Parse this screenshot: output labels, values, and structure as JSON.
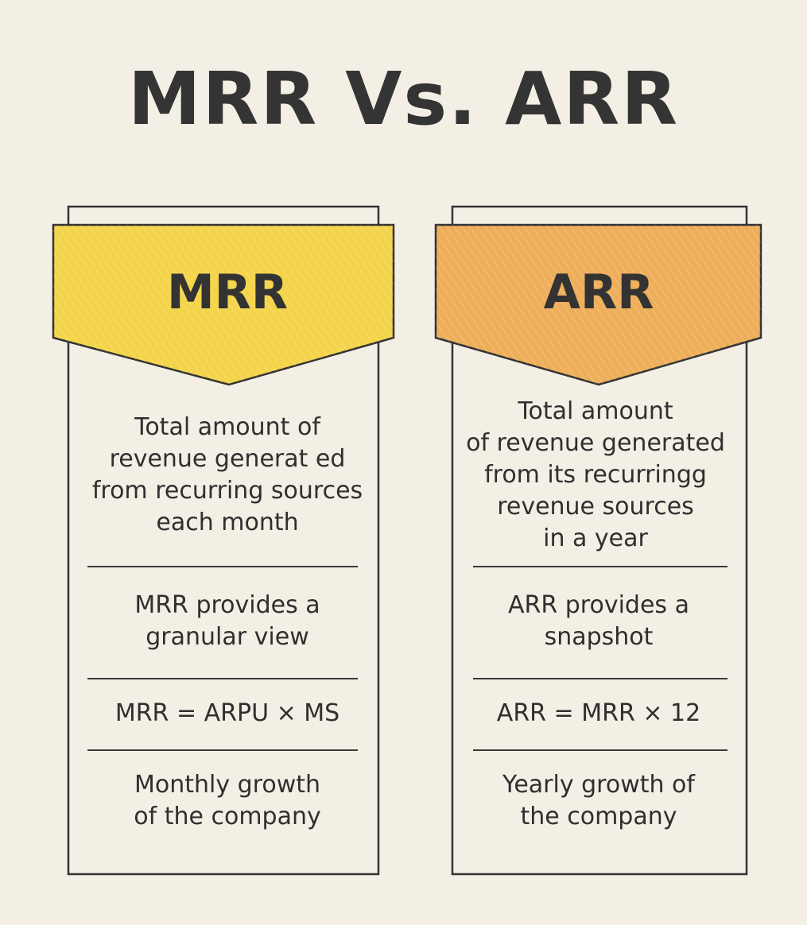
{
  "title": "MRR Vs. ARR",
  "colors": {
    "background": "#f3efe4",
    "mrr_banner": "#f4d44a",
    "arr_banner": "#eeae5a",
    "ink": "#333333"
  },
  "columns": [
    {
      "heading": "MRR",
      "rows": [
        "Total amount of\nrevenue generat ed\nfrom recurring sources\neach month",
        "MRR provides a\ngranular view",
        "MRR = ARPU × MS",
        "Monthly growth\nof the company"
      ]
    },
    {
      "heading": "ARR",
      "rows": [
        "Total amount\nof revenue generated\nfrom its recurringg\nrevenue sources\nin a year",
        "ARR provides a\nsnapshot",
        "ARR = MRR × 12",
        "Yearly growth of\nthe company"
      ]
    }
  ]
}
